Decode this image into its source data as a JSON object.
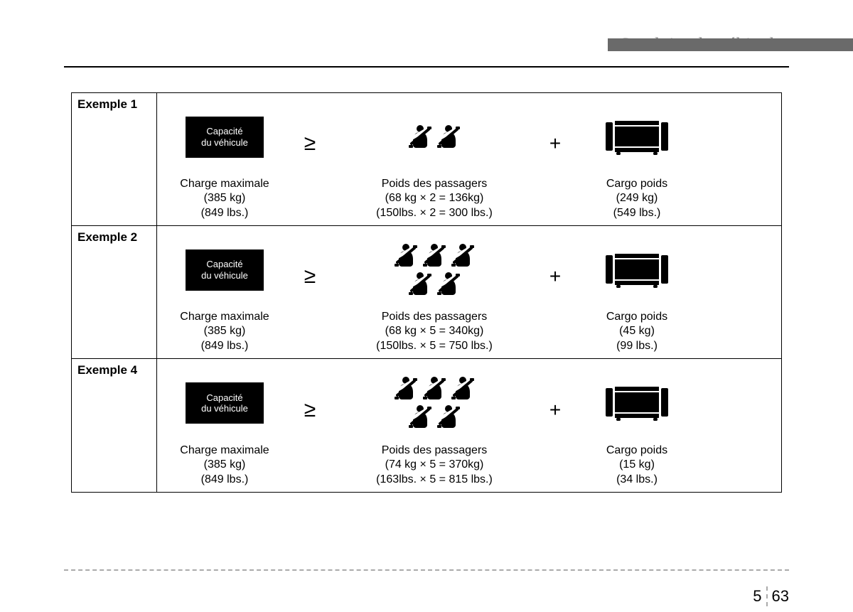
{
  "header": {
    "title": "Conduite du véhicule"
  },
  "capacity_box_label": "Capacité\ndu véhicule",
  "operators": {
    "gte": "≥",
    "plus": "+"
  },
  "rows": [
    {
      "label": "Exemple 1",
      "capacity": {
        "title": "Charge maximale",
        "kg": "(385 kg)",
        "lbs": "(849 lbs.)"
      },
      "passengers": {
        "title": "Poids des passagers",
        "kg": "(68 kg × 2 = 136kg)",
        "lbs": "(150lbs. × 2 = 300 lbs.)",
        "count": 2,
        "layout": "1row"
      },
      "cargo": {
        "title": "Cargo poids",
        "kg": "(249 kg)",
        "lbs": "(549 lbs.)"
      }
    },
    {
      "label": "Exemple 2",
      "capacity": {
        "title": "Charge maximale",
        "kg": "(385 kg)",
        "lbs": "(849 lbs.)"
      },
      "passengers": {
        "title": "Poids des passagers",
        "kg": "(68 kg × 5 = 340kg)",
        "lbs": "(150lbs. × 5 = 750 lbs.)",
        "count": 5,
        "layout": "2row"
      },
      "cargo": {
        "title": "Cargo poids",
        "kg": "(45 kg)",
        "lbs": "(99 lbs.)"
      }
    },
    {
      "label": "Exemple 4",
      "capacity": {
        "title": "Charge maximale",
        "kg": "(385 kg)",
        "lbs": "(849 lbs.)"
      },
      "passengers": {
        "title": "Poids des passagers",
        "kg": "(74 kg × 5 = 370kg)",
        "lbs": "(163lbs. × 5 = 815 lbs.)",
        "count": 5,
        "layout": "2row"
      },
      "cargo": {
        "title": "Cargo poids",
        "kg": "(15 kg)",
        "lbs": "(34 lbs.)"
      }
    }
  ],
  "page": {
    "section": "5",
    "number": "63"
  },
  "colors": {
    "header_text": "#888888",
    "header_bar": "#6a6a6a",
    "border": "#000000",
    "icon": "#000000"
  }
}
